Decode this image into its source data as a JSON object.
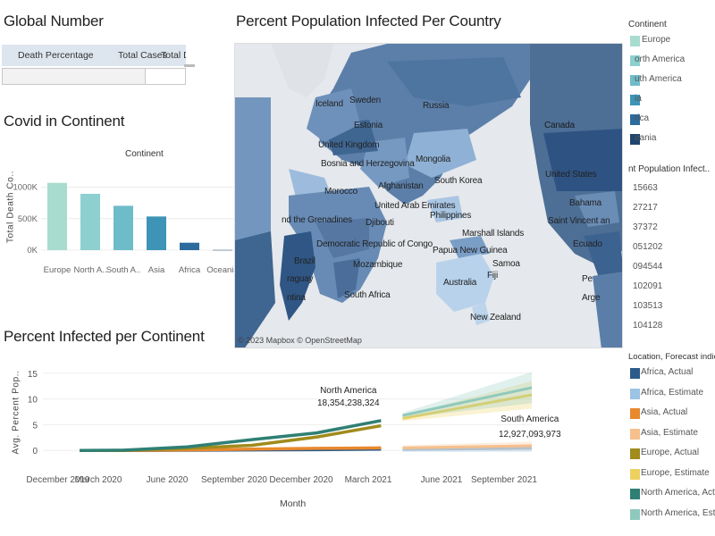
{
  "global_number": {
    "title": "Global Number",
    "columns": [
      "Death Percentage",
      "Total Cases",
      "Total D"
    ]
  },
  "covid_continent": {
    "title": "Covid in Continent",
    "header": "Continent",
    "ylabel": "Total Death Co..",
    "ticks": [
      "1000K",
      "500K",
      "0K"
    ]
  },
  "map": {
    "title": "Percent Population Infected Per Country",
    "attribution": "© 2023 Mapbox © OpenStreetMap",
    "labels": {
      "iceland": "Iceland",
      "sweden": "Sweden",
      "russia": "Russia",
      "estonia": "Estonia",
      "canada": "Canada",
      "uk": "United Kingdom",
      "bosnia": "Bosnia and Herzegovina",
      "mongolia": "Mongolia",
      "us": "United States",
      "afghanistan": "Afghanistan",
      "skorea": "South Korea",
      "morocco": "Morocco",
      "bahamas": "Bahama",
      "grenadines": "nd the Grenadines",
      "uae": "United Arab Emirates",
      "philippines": "Philippines",
      "stvincent": "Saint Vincent an",
      "djibouti": "Djibouti",
      "marshall": "Marshall Islands",
      "drc": "Democratic Republic of Congo",
      "png": "Papua New Guinea",
      "ecuador": "Ecuado",
      "brazil": "Brazil",
      "samoa": "Samoa",
      "mozambique": "Mozambique",
      "fiji": "Fiji",
      "peru": "Pe",
      "paraguay": "raguay",
      "australia": "Australia",
      "argentina_left": "ntina",
      "safrica": "South Africa",
      "argentina_right": "Arge",
      "nz": "New Zealand"
    }
  },
  "legend_continent": {
    "title": "Continent",
    "items": [
      {
        "label": "Europe",
        "color": "#a8dccf"
      },
      {
        "label": "orth America",
        "color": "#8ecfd0"
      },
      {
        "label": "uth America",
        "color": "#6fbcc9"
      },
      {
        "label": "ia",
        "color": "#3d94b6"
      },
      {
        "label": "rica",
        "color": "#2c6b9d"
      },
      {
        "label": "eania",
        "color": "#20456e"
      }
    ]
  },
  "legend_ppi": {
    "title": "nt Population Infect..",
    "values": [
      "15663",
      "27217",
      "37372",
      "051202",
      "094544",
      "102091",
      "103513",
      "104128"
    ]
  },
  "legend_forecast": {
    "title": "Location, Forecast indicat..",
    "items": [
      {
        "label": "Africa, Actual",
        "color": "#2c5b8b"
      },
      {
        "label": "Africa, Estimate",
        "color": "#9cc3e4"
      },
      {
        "label": "Asia, Actual",
        "color": "#e8892e"
      },
      {
        "label": "Asia, Estimate",
        "color": "#f6c08d"
      },
      {
        "label": "Europe, Actual",
        "color": "#a08b1c"
      },
      {
        "label": "Europe, Estimate",
        "color": "#ecd15f"
      },
      {
        "label": "North America, Actual",
        "color": "#2f7f74"
      },
      {
        "label": "North America, Estim..",
        "color": "#8fc9bd"
      }
    ]
  },
  "percent_infected": {
    "title": "Percent Infected per Continent",
    "ylabel": "Avg. Percent Pop..",
    "xlabel": "Month",
    "annotations": [
      {
        "label": "North America",
        "value": "18,354,238,324"
      },
      {
        "label": "South America",
        "value": "12,927,093,973"
      }
    ]
  },
  "chart_data": [
    {
      "type": "bar",
      "title": "Covid in Continent",
      "xlabel": "Continent",
      "ylabel": "Total Death Co..",
      "categories": [
        "Europe",
        "North A..",
        "South A..",
        "Asia",
        "Africa",
        "Oceania"
      ],
      "values": [
        1070000,
        895000,
        705000,
        535000,
        118000,
        3000
      ],
      "colors": [
        "#a8dccf",
        "#8ecfd0",
        "#6fbcc9",
        "#3d94b6",
        "#2c6b9d",
        "#20456e"
      ],
      "ylim": [
        0,
        1250000
      ],
      "grid": true
    },
    {
      "type": "line",
      "title": "Percent Infected per Continent",
      "xlabel": "Month",
      "ylabel": "Avg. Percent Pop..",
      "x_ticks": [
        "December 2019",
        "March 2020",
        "June 2020",
        "September 2020",
        "December 2020",
        "March 2021",
        "June 2021",
        "September 2021"
      ],
      "y_ticks": [
        0,
        5,
        10,
        15
      ],
      "ylim": [
        -1,
        16
      ],
      "legend": "right",
      "series": [
        {
          "name": "Africa, Actual",
          "color": "#2c5b8b",
          "x": [
            "2020-01",
            "2020-03",
            "2020-06",
            "2020-09",
            "2020-12",
            "2021-03"
          ],
          "y": [
            0,
            0,
            0.05,
            0.1,
            0.15,
            0.25
          ]
        },
        {
          "name": "Asia, Actual",
          "color": "#e8892e",
          "x": [
            "2020-01",
            "2020-03",
            "2020-06",
            "2020-09",
            "2020-12",
            "2021-03"
          ],
          "y": [
            0,
            0,
            0.1,
            0.25,
            0.4,
            0.5
          ]
        },
        {
          "name": "Europe, Actual",
          "color": "#a08b1c",
          "x": [
            "2020-01",
            "2020-03",
            "2020-06",
            "2020-09",
            "2020-12",
            "2021-03"
          ],
          "y": [
            0,
            0,
            0.4,
            1.0,
            2.6,
            4.8
          ]
        },
        {
          "name": "North America, Actual",
          "color": "#2f7f74",
          "x": [
            "2020-01",
            "2020-03",
            "2020-06",
            "2020-09",
            "2020-12",
            "2021-03"
          ],
          "y": [
            0,
            0.05,
            0.7,
            2.1,
            3.4,
            5.8
          ]
        },
        {
          "name": "Africa, Estimate",
          "color": "#9cc3e4",
          "x": [
            "2021-04",
            "2021-10"
          ],
          "y": [
            0.2,
            0.4
          ]
        },
        {
          "name": "Asia, Estimate",
          "color": "#f6c08d",
          "x": [
            "2021-04",
            "2021-10"
          ],
          "y": [
            0.5,
            0.9
          ]
        },
        {
          "name": "Europe, Estimate",
          "color": "#ecd15f",
          "x": [
            "2021-04",
            "2021-10"
          ],
          "y": [
            6.2,
            10.8
          ]
        },
        {
          "name": "North America, Estim..",
          "color": "#8fc9bd",
          "x": [
            "2021-04",
            "2021-10"
          ],
          "y": [
            6.8,
            12.2
          ]
        }
      ]
    }
  ]
}
